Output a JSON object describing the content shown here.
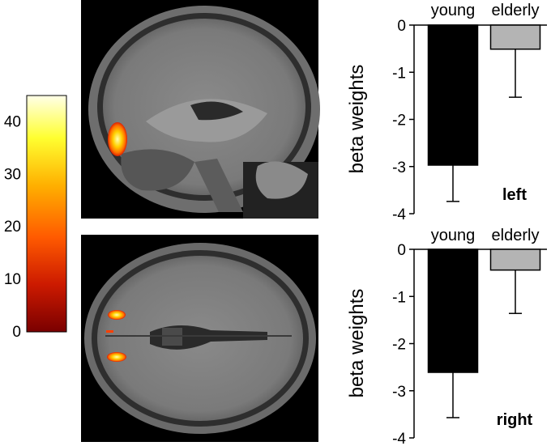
{
  "colorbar": {
    "ticks": [
      0,
      10,
      20,
      30,
      40
    ],
    "range": [
      0,
      45
    ],
    "colors": [
      "#7a0000",
      "#cc1a00",
      "#ff5a00",
      "#ffb000",
      "#ffff30",
      "#ffffe8"
    ]
  },
  "chart_data": [
    {
      "type": "bar",
      "categories": [
        "young",
        "elderly"
      ],
      "values": [
        -2.97,
        -0.51
      ],
      "errors": [
        0.77,
        1.02
      ],
      "ylabel": "beta weights",
      "ylim": [
        -4,
        0
      ],
      "yticks": [
        0,
        -1,
        -2,
        -3,
        -4
      ],
      "annotation": "left",
      "bar_colors": [
        "#000000",
        "#b4b4b4"
      ]
    },
    {
      "type": "bar",
      "categories": [
        "young",
        "elderly"
      ],
      "values": [
        -2.61,
        -0.44
      ],
      "errors": [
        0.96,
        0.92
      ],
      "ylabel": "beta weights",
      "ylim": [
        -4,
        0
      ],
      "yticks": [
        0,
        -1,
        -2,
        -3,
        -4
      ],
      "annotation": "right",
      "bar_colors": [
        "#000000",
        "#b4b4b4"
      ]
    }
  ]
}
